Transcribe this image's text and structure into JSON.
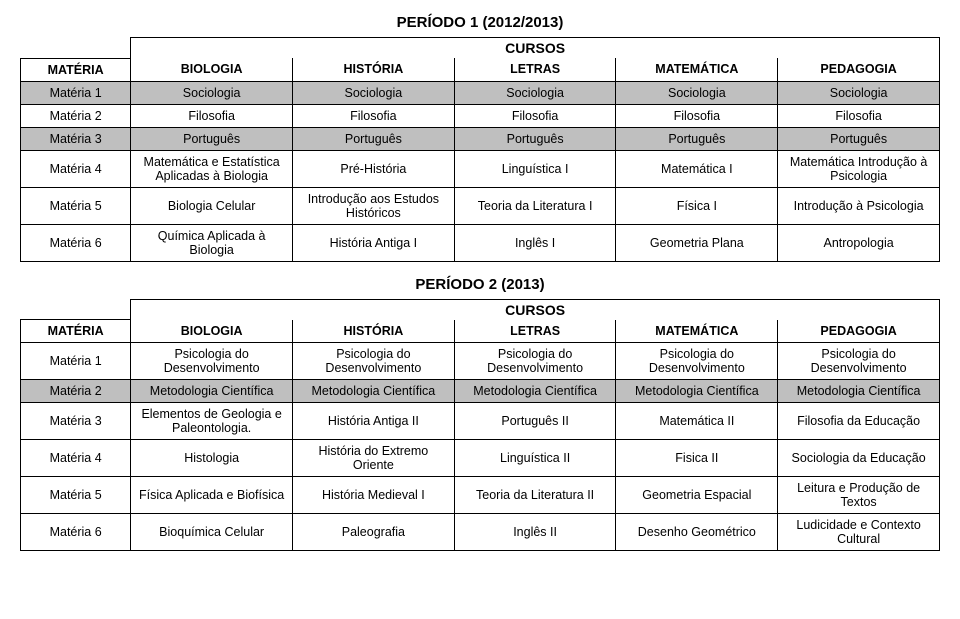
{
  "periods": [
    {
      "title": "PERÍODO 1 (2012/2013)",
      "cursos_label": "CURSOS",
      "header": [
        "MATÉRIA",
        "BIOLOGIA",
        "HISTÓRIA",
        "LETRAS",
        "MATEMÁTICA",
        "PEDAGOGIA"
      ],
      "rows": [
        {
          "shaded": true,
          "cells": [
            "Matéria 1",
            "Sociologia",
            "Sociologia",
            "Sociologia",
            "Sociologia",
            "Sociologia"
          ]
        },
        {
          "shaded": false,
          "cells": [
            "Matéria 2",
            "Filosofia",
            "Filosofia",
            "Filosofia",
            "Filosofia",
            "Filosofia"
          ]
        },
        {
          "shaded": true,
          "cells": [
            "Matéria 3",
            "Português",
            "Português",
            "Português",
            "Português",
            "Português"
          ]
        },
        {
          "shaded": false,
          "cells": [
            "Matéria 4",
            "Matemática e Estatística Aplicadas à Biologia",
            "Pré-História",
            "Linguística I",
            "Matemática I",
            "Matemática Introdução à Psicologia"
          ]
        },
        {
          "shaded": false,
          "cells": [
            "Matéria 5",
            "Biologia Celular",
            "Introdução aos Estudos Históricos",
            "Teoria da Literatura I",
            "Física I",
            "Introdução à Psicologia"
          ]
        },
        {
          "shaded": false,
          "cells": [
            "Matéria 6",
            "Química Aplicada à Biologia",
            "História Antiga I",
            "Inglês I",
            "Geometria Plana",
            "Antropologia"
          ]
        }
      ]
    },
    {
      "title": "PERÍODO 2 (2013)",
      "cursos_label": "CURSOS",
      "header": [
        "MATÉRIA",
        "BIOLOGIA",
        "HISTÓRIA",
        "LETRAS",
        "MATEMÁTICA",
        "PEDAGOGIA"
      ],
      "rows": [
        {
          "shaded": false,
          "cells": [
            "Matéria 1",
            "Psicologia do Desenvolvimento",
            "Psicologia do Desenvolvimento",
            "Psicologia do Desenvolvimento",
            "Psicologia do Desenvolvimento",
            "Psicologia do Desenvolvimento"
          ]
        },
        {
          "shaded": true,
          "cells": [
            "Matéria 2",
            "Metodologia Científica",
            "Metodologia Científica",
            "Metodologia Científica",
            "Metodologia Científica",
            "Metodologia Científica"
          ]
        },
        {
          "shaded": false,
          "cells": [
            "Matéria 3",
            "Elementos de Geologia e Paleontologia.",
            "História Antiga II",
            "Português II",
            "Matemática II",
            "Filosofia da Educação"
          ]
        },
        {
          "shaded": false,
          "cells": [
            "Matéria 4",
            "Histologia",
            "História do Extremo Oriente",
            "Linguística II",
            "Fisica II",
            "Sociologia da Educação"
          ]
        },
        {
          "shaded": false,
          "cells": [
            "Matéria 5",
            "Física Aplicada e Biofísica",
            "História Medieval I",
            "Teoria da Literatura II",
            "Geometria Espacial",
            "Leitura e Produção de Textos"
          ]
        },
        {
          "shaded": false,
          "cells": [
            "Matéria 6",
            "Bioquímica Celular",
            "Paleografia",
            "Inglês II",
            "Desenho Geométrico",
            "Ludicidade e Contexto Cultural"
          ]
        }
      ]
    }
  ],
  "style": {
    "shaded_bg": "#bfbfbf",
    "border_color": "#000000",
    "font_family": "Arial",
    "title_fontsize_pt": 15,
    "header_fontsize_pt": 14,
    "cell_fontsize_pt": 12.5,
    "col_widths_pct": [
      12,
      17.6,
      17.6,
      17.6,
      17.6,
      17.6
    ]
  }
}
